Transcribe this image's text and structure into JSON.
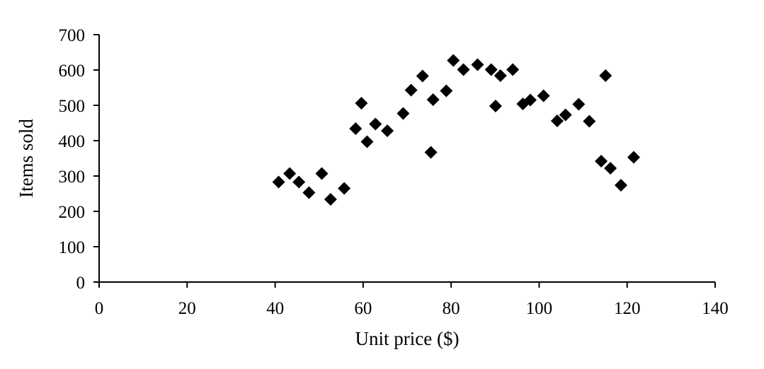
{
  "chart_data": {
    "type": "scatter",
    "title": "",
    "xlabel": "Unit price ($)",
    "ylabel": "Items sold",
    "xlim": [
      0,
      140
    ],
    "ylim": [
      0,
      700
    ],
    "x_ticks": [
      0,
      20,
      40,
      60,
      80,
      100,
      120,
      140
    ],
    "y_ticks": [
      0,
      100,
      200,
      300,
      400,
      500,
      600,
      700
    ],
    "grid": false,
    "marker": "diamond",
    "marker_color": "#000000",
    "series": [
      {
        "points": [
          [
            40.8,
            283
          ],
          [
            43.3,
            307
          ],
          [
            45.4,
            283
          ],
          [
            47.7,
            253
          ],
          [
            50.6,
            307
          ],
          [
            52.6,
            234
          ],
          [
            55.7,
            265
          ],
          [
            58.3,
            434
          ],
          [
            59.6,
            506
          ],
          [
            60.9,
            397
          ],
          [
            62.8,
            447
          ],
          [
            65.5,
            428
          ],
          [
            69.1,
            477
          ],
          [
            70.9,
            543
          ],
          [
            73.5,
            583
          ],
          [
            75.4,
            367
          ],
          [
            75.9,
            516
          ],
          [
            78.9,
            541
          ],
          [
            80.5,
            627
          ],
          [
            82.8,
            601
          ],
          [
            86.0,
            615
          ],
          [
            89.1,
            601
          ],
          [
            90.1,
            498
          ],
          [
            91.2,
            584
          ],
          [
            94.0,
            601
          ],
          [
            96.3,
            504
          ],
          [
            98.0,
            515
          ],
          [
            101.0,
            527
          ],
          [
            104.1,
            456
          ],
          [
            106.0,
            473
          ],
          [
            109.0,
            503
          ],
          [
            111.4,
            455
          ],
          [
            114.1,
            342
          ],
          [
            115.1,
            584
          ],
          [
            116.2,
            322
          ],
          [
            118.6,
            274
          ],
          [
            121.5,
            353
          ]
        ]
      }
    ]
  }
}
